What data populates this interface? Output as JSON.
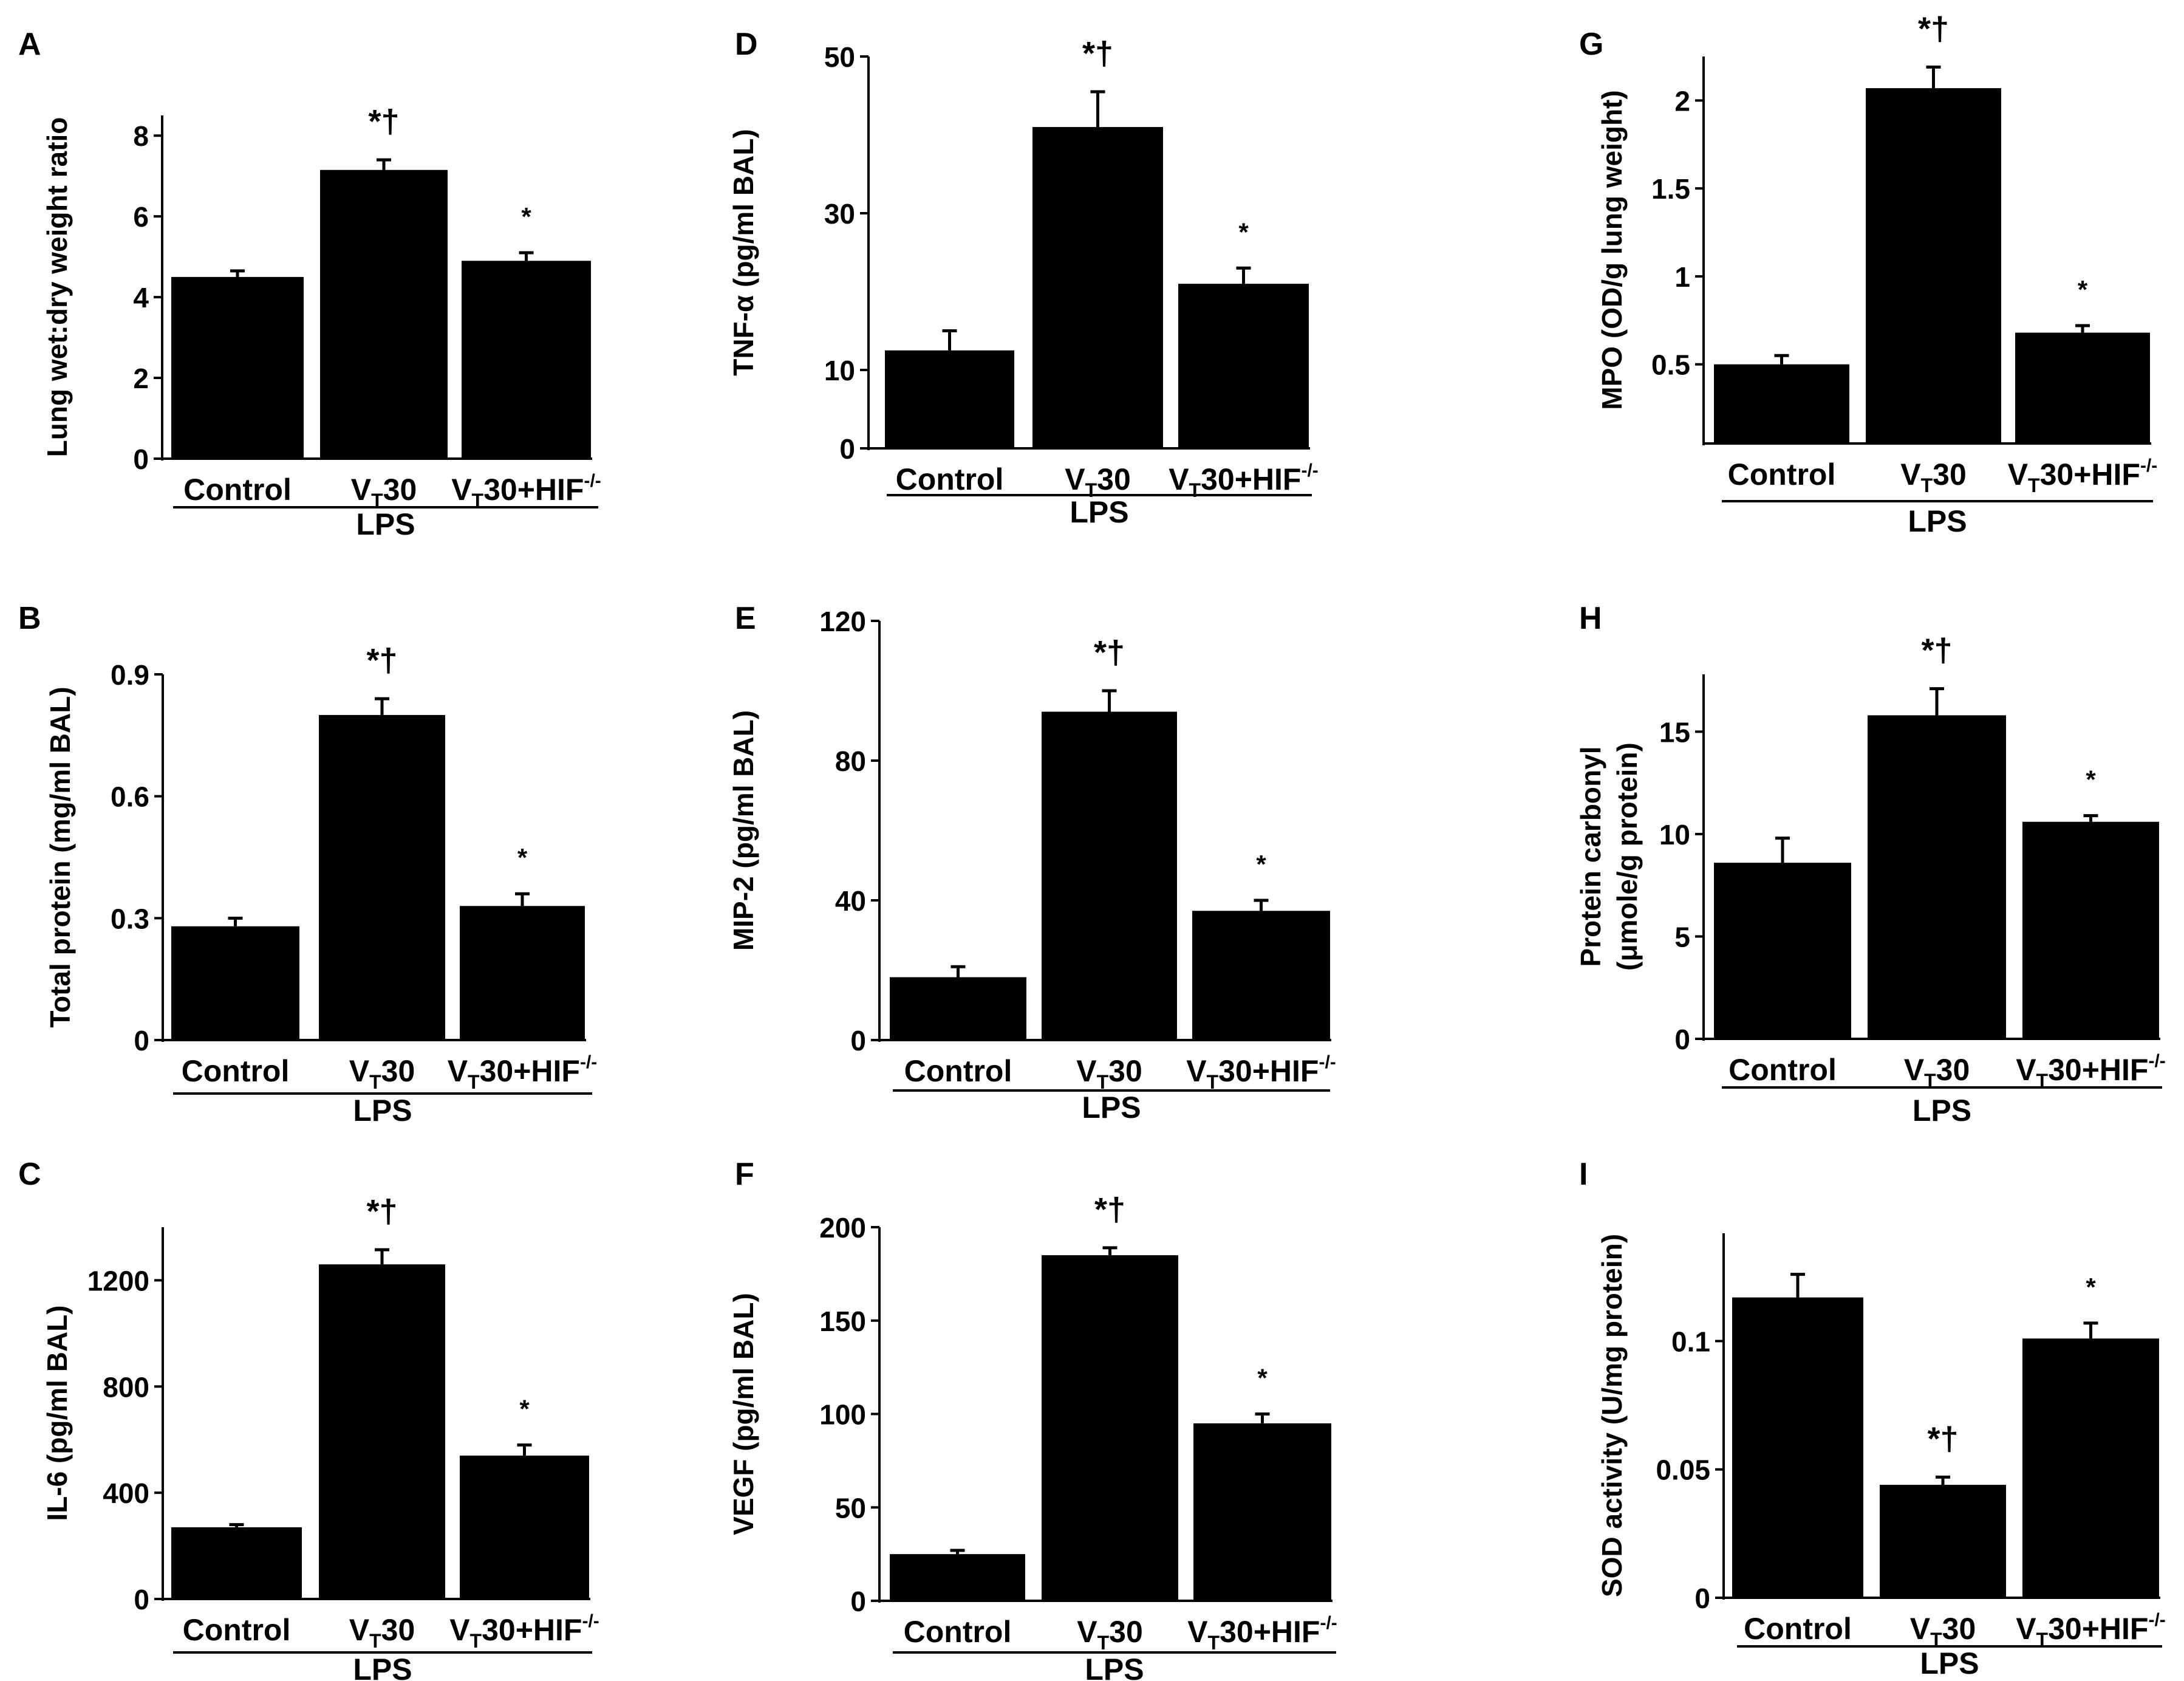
{
  "group_label": "LPS",
  "colors": {
    "bar": "#000000",
    "axis": "#000000",
    "background": "#ffffff"
  },
  "chart_data": [
    {
      "panel": "A",
      "type": "bar",
      "ylabel": "Lung wet:dry weight ratio",
      "categories": [
        "Control",
        "VT30",
        "VT30+HIF-/-"
      ],
      "values": [
        4.5,
        7.15,
        4.9
      ],
      "errors": [
        0.15,
        0.25,
        0.2
      ],
      "annotations": [
        "",
        "*†",
        "*"
      ],
      "yticks": [
        0,
        2,
        4,
        6,
        8
      ],
      "ytick_labels": [
        "0",
        "2",
        "4",
        "6",
        "8"
      ],
      "ylim": [
        0,
        8.5
      ]
    },
    {
      "panel": "B",
      "type": "bar",
      "ylabel": "Total protein (mg/ml BAL)",
      "categories": [
        "Control",
        "VT30",
        "VT30+HIF-/-"
      ],
      "values": [
        0.28,
        0.8,
        0.33
      ],
      "errors": [
        0.02,
        0.04,
        0.03
      ],
      "annotations": [
        "",
        "*†",
        "*"
      ],
      "yticks": [
        0,
        0.3,
        0.6,
        0.9
      ],
      "ytick_labels": [
        "0",
        "0.3",
        "0.6",
        "0.9"
      ],
      "ylim": [
        0,
        0.9
      ]
    },
    {
      "panel": "C",
      "type": "bar",
      "ylabel": "IL-6 (pg/ml BAL)",
      "categories": [
        "Control",
        "VT30",
        "VT30+HIF-/-"
      ],
      "values": [
        270,
        1260,
        540
      ],
      "errors": [
        10,
        55,
        40
      ],
      "annotations": [
        "",
        "*†",
        "*"
      ],
      "yticks": [
        0,
        400,
        800,
        1200
      ],
      "ytick_labels": [
        "0",
        "400",
        "800",
        "1200"
      ],
      "ylim": [
        0,
        1400
      ]
    },
    {
      "panel": "D",
      "type": "bar",
      "ylabel": "TNF-α (pg/ml BAL)",
      "categories": [
        "Control",
        "VT30",
        "VT30+HIF-/-"
      ],
      "values": [
        12.5,
        41,
        21
      ],
      "errors": [
        2.5,
        4.5,
        2
      ],
      "annotations": [
        "",
        "*†",
        "*"
      ],
      "yticks": [
        0,
        10,
        30,
        50
      ],
      "ytick_labels": [
        "0",
        "10",
        "30",
        "50"
      ],
      "ylim": [
        0,
        50
      ]
    },
    {
      "panel": "E",
      "type": "bar",
      "ylabel": "MIP-2 (pg/ml BAL)",
      "categories": [
        "Control",
        "VT30",
        "VT30+HIF-/-"
      ],
      "values": [
        18,
        94,
        37
      ],
      "errors": [
        3,
        6,
        3
      ],
      "annotations": [
        "",
        "*†",
        "*"
      ],
      "yticks": [
        0,
        40,
        80,
        120
      ],
      "ytick_labels": [
        "0",
        "40",
        "80",
        "120"
      ],
      "ylim": [
        0,
        120
      ]
    },
    {
      "panel": "F",
      "type": "bar",
      "ylabel": "VEGF (pg/ml BAL)",
      "categories": [
        "Control",
        "VT30",
        "VT30+HIF-/-"
      ],
      "values": [
        25,
        185,
        95
      ],
      "errors": [
        2,
        4,
        5
      ],
      "annotations": [
        "",
        "*†",
        "*"
      ],
      "yticks": [
        0,
        50,
        100,
        150,
        200
      ],
      "ytick_labels": [
        "0",
        "50",
        "100",
        "150",
        "200"
      ],
      "ylim": [
        0,
        200
      ]
    },
    {
      "panel": "G",
      "type": "bar",
      "ylabel": "MPO (OD/g lung weight)",
      "categories": [
        "Control",
        "VT30",
        "VT30+HIF-/-"
      ],
      "values": [
        0.5,
        2.07,
        0.68
      ],
      "errors": [
        0.05,
        0.12,
        0.04
      ],
      "annotations": [
        "",
        "*†",
        "*"
      ],
      "yticks": [
        0.5,
        1,
        1.5,
        2
      ],
      "ytick_labels": [
        "0.5",
        "1",
        "1.5",
        "2"
      ],
      "ylim": [
        0.05,
        2.25
      ]
    },
    {
      "panel": "H",
      "type": "bar",
      "ylabel_lines": [
        "Protein carbonyl",
        "(μmole/g protein)"
      ],
      "categories": [
        "Control",
        "VT30",
        "VT30+HIF-/-"
      ],
      "values": [
        8.6,
        15.8,
        10.6
      ],
      "errors": [
        1.2,
        1.3,
        0.3
      ],
      "annotations": [
        "",
        "*†",
        "*"
      ],
      "yticks": [
        0,
        5,
        10,
        15
      ],
      "ytick_labels": [
        "0",
        "5",
        "10",
        "15"
      ],
      "ylim": [
        0,
        17.8
      ]
    },
    {
      "panel": "I",
      "type": "bar",
      "ylabel": "SOD activity (U/mg protein)",
      "categories": [
        "Control",
        "VT30",
        "VT30+HIF-/-"
      ],
      "values": [
        0.117,
        0.044,
        0.101
      ],
      "errors": [
        0.009,
        0.003,
        0.006
      ],
      "annotations": [
        "",
        "*†",
        "*"
      ],
      "yticks": [
        0,
        0.05,
        0.1
      ],
      "ytick_labels": [
        "0",
        "0.05",
        "0.1"
      ],
      "ylim": [
        0,
        0.142
      ]
    }
  ]
}
